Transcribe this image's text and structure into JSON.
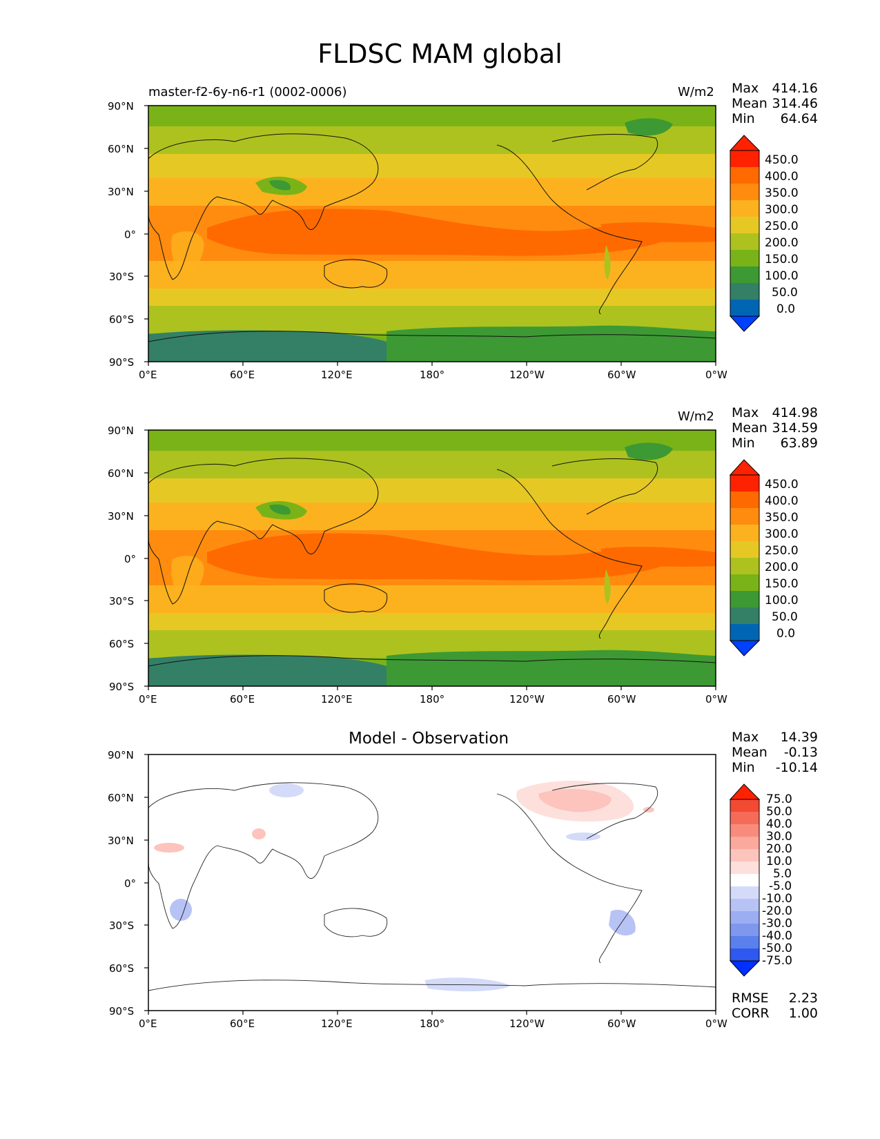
{
  "title": "FLDSC MAM global",
  "x_ticks": [
    "0°E",
    "60°E",
    "120°E",
    "180°",
    "120°W",
    "60°W",
    "0°W"
  ],
  "y_ticks": [
    "90°N",
    "60°N",
    "30°N",
    "0°",
    "30°S",
    "60°S",
    "90°S"
  ],
  "panels": [
    {
      "left_title": "master-f2-6y-n6-r1 (0002-0006)",
      "right_title": "W/m2",
      "stats": {
        "max_label": "Max",
        "max": "414.16",
        "mean_label": "Mean",
        "mean": "314.46",
        "min_label": "Min",
        "min": "64.64"
      },
      "colorbar_labels": [
        "450.0",
        "400.0",
        "350.0",
        "300.0",
        "250.0",
        "200.0",
        "150.0",
        "100.0",
        "50.0",
        "0.0"
      ]
    },
    {
      "left_title": "",
      "right_title": "W/m2",
      "stats": {
        "max_label": "Max",
        "max": "414.98",
        "mean_label": "Mean",
        "mean": "314.59",
        "min_label": "Min",
        "min": "63.89"
      },
      "colorbar_labels": [
        "450.0",
        "400.0",
        "350.0",
        "300.0",
        "250.0",
        "200.0",
        "150.0",
        "100.0",
        "50.0",
        "0.0"
      ]
    },
    {
      "center_title": "Model - Observation",
      "stats": {
        "max_label": "Max",
        "max": "14.39",
        "mean_label": "Mean",
        "mean": "-0.13",
        "min_label": "Min",
        "min": "-10.14"
      },
      "colorbar_labels": [
        "75.0",
        "50.0",
        "40.0",
        "30.0",
        "20.0",
        "10.0",
        "5.0",
        "-5.0",
        "-10.0",
        "-20.0",
        "-30.0",
        "-40.0",
        "-50.0",
        "-75.0"
      ],
      "rmse_label": "RMSE",
      "rmse": "2.23",
      "corr_label": "CORR",
      "corr": "1.00"
    }
  ],
  "colors": {
    "field_scale": [
      "#0040ff",
      "#0066b3",
      "#338066",
      "#3d9933",
      "#7ab317",
      "#adc21f",
      "#e6c825",
      "#fcb21e",
      "#ff8c0f",
      "#ff6a00",
      "#ff2200"
    ],
    "diff_scale": [
      "#0030ff",
      "#2e58f0",
      "#5a80ec",
      "#7f98ee",
      "#9cadf2",
      "#b7c3f5",
      "#d4dbf9",
      "#ffffff",
      "#fde0dc",
      "#fcc4bd",
      "#fba89d",
      "#f98b7d",
      "#f66a58",
      "#f24a33",
      "#ff2200"
    ]
  }
}
